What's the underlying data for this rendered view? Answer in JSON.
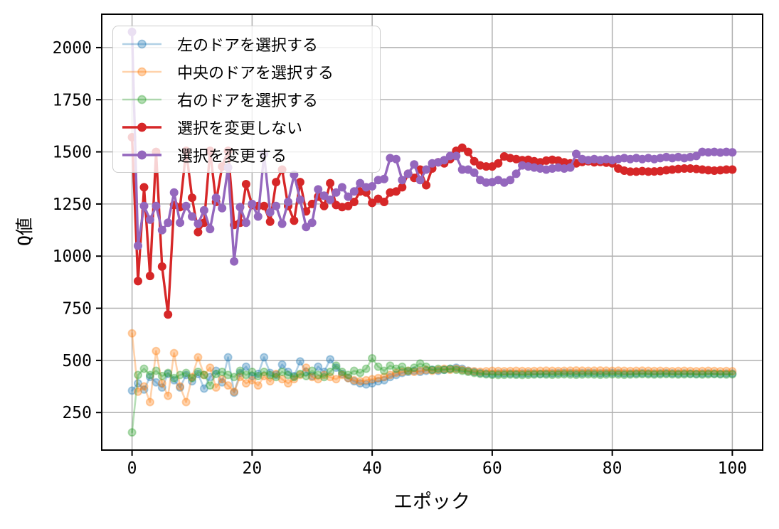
{
  "chart_data": {
    "type": "line",
    "title": "",
    "xlabel": "エポック",
    "ylabel": "Q値",
    "x_ticks": [
      0,
      20,
      40,
      60,
      80,
      100
    ],
    "y_ticks": [
      250,
      500,
      750,
      1000,
      1250,
      1500,
      1750,
      2000
    ],
    "xlim": [
      -5.05,
      105.05
    ],
    "ylim": [
      70,
      2160
    ],
    "grid": true,
    "grid_color": "#b0b0b0",
    "spine_color": "#000000",
    "background_color": "#ffffff",
    "legend_position": "upper-left",
    "legend_border_color": "#cccccc",
    "x_start": 0,
    "x_step": 1,
    "n_points": 101,
    "series": [
      {
        "name": "左のドアを選択する",
        "key": "left-door",
        "color": "#1f77b4",
        "alpha": 0.35,
        "linewidth": 2.6,
        "marker": "circle",
        "values": [
          355,
          390,
          360,
          420,
          395,
          370,
          435,
          405,
          370,
          430,
          400,
          435,
          365,
          420,
          450,
          395,
          515,
          345,
          440,
          470,
          425,
          435,
          515,
          440,
          430,
          480,
          445,
          425,
          495,
          445,
          425,
          470,
          445,
          505,
          465,
          435,
          415,
          400,
          390,
          385,
          390,
          400,
          405,
          420,
          430,
          440,
          445,
          450,
          445,
          450,
          455,
          450,
          455,
          460,
          465,
          460,
          450,
          445,
          440,
          437,
          436,
          437,
          438,
          437,
          436,
          437,
          438,
          437,
          436,
          437,
          438,
          439,
          440,
          439,
          438,
          439,
          440,
          439,
          438,
          439,
          440,
          439,
          438,
          437,
          438,
          439,
          438,
          437,
          438,
          439,
          438,
          437,
          438,
          437,
          436,
          437,
          438,
          437,
          436,
          437,
          437
        ]
      },
      {
        "name": "中央のドアを選択する",
        "key": "center-door",
        "color": "#ff7f0e",
        "alpha": 0.35,
        "linewidth": 2.6,
        "marker": "circle",
        "values": [
          630,
          350,
          375,
          300,
          545,
          390,
          330,
          535,
          375,
          300,
          420,
          515,
          430,
          465,
          370,
          410,
          380,
          350,
          420,
          390,
          405,
          380,
          425,
          400,
          435,
          410,
          390,
          410,
          430,
          465,
          420,
          410,
          430,
          420,
          410,
          430,
          415,
          405,
          400,
          405,
          410,
          415,
          420,
          430,
          440,
          445,
          450,
          445,
          450,
          455,
          450,
          455,
          460,
          455,
          460,
          455,
          450,
          448,
          446,
          448,
          450,
          449,
          448,
          449,
          450,
          449,
          448,
          449,
          450,
          451,
          450,
          449,
          450,
          451,
          452,
          451,
          450,
          451,
          452,
          451,
          450,
          451,
          450,
          449,
          450,
          451,
          450,
          449,
          450,
          449,
          448,
          449,
          450,
          449,
          448,
          449,
          450,
          449,
          448,
          449,
          448
        ]
      },
      {
        "name": "右のドアを選択する",
        "key": "right-door",
        "color": "#2ca02c",
        "alpha": 0.35,
        "linewidth": 2.6,
        "marker": "circle",
        "values": [
          155,
          430,
          460,
          430,
          450,
          425,
          440,
          415,
          430,
          440,
          415,
          445,
          430,
          380,
          435,
          445,
          430,
          420,
          450,
          430,
          445,
          425,
          445,
          430,
          420,
          445,
          430,
          420,
          435,
          425,
          450,
          430,
          420,
          445,
          475,
          445,
          430,
          450,
          440,
          460,
          510,
          470,
          450,
          475,
          460,
          470,
          450,
          465,
          485,
          470,
          455,
          460,
          455,
          460,
          455,
          450,
          445,
          440,
          436,
          433,
          431,
          430,
          431,
          432,
          431,
          430,
          431,
          432,
          433,
          432,
          431,
          432,
          433,
          432,
          431,
          432,
          433,
          432,
          431,
          432,
          433,
          432,
          431,
          432,
          433,
          434,
          433,
          432,
          433,
          434,
          433,
          432,
          433,
          434,
          433,
          432,
          433,
          434,
          433,
          432,
          433
        ]
      },
      {
        "name": "選択を変更しない",
        "key": "stay",
        "color": "#d62728",
        "alpha": 1,
        "linewidth": 3.4,
        "marker": "circle",
        "values": [
          1570,
          880,
          1330,
          905,
          1500,
          950,
          720,
          1245,
          1235,
          1505,
          1280,
          1115,
          1160,
          1505,
          1260,
          1430,
          1505,
          1150,
          1160,
          1345,
          1245,
          1240,
          1240,
          1165,
          1355,
          1415,
          1240,
          1170,
          1355,
          1215,
          1250,
          1285,
          1240,
          1350,
          1245,
          1235,
          1240,
          1260,
          1310,
          1305,
          1255,
          1275,
          1260,
          1305,
          1310,
          1330,
          1395,
          1375,
          1415,
          1340,
          1420,
          1450,
          1445,
          1465,
          1505,
          1520,
          1500,
          1455,
          1435,
          1430,
          1430,
          1445,
          1478,
          1470,
          1465,
          1460,
          1462,
          1455,
          1450,
          1458,
          1462,
          1458,
          1450,
          1445,
          1445,
          1452,
          1455,
          1450,
          1452,
          1448,
          1445,
          1420,
          1410,
          1405,
          1405,
          1408,
          1405,
          1406,
          1408,
          1412,
          1415,
          1418,
          1420,
          1420,
          1418,
          1415,
          1412,
          1410,
          1412,
          1415,
          1415
        ]
      },
      {
        "name": "選択を変更する",
        "key": "switch",
        "color": "#9467bd",
        "alpha": 1,
        "linewidth": 3.4,
        "marker": "circle",
        "values": [
          2075,
          1050,
          1240,
          1175,
          1240,
          1125,
          1160,
          1305,
          1160,
          1240,
          1190,
          1155,
          1220,
          1130,
          1280,
          1230,
          1425,
          975,
          1235,
          1160,
          1250,
          1190,
          1490,
          1210,
          1240,
          1155,
          1260,
          1390,
          1270,
          1140,
          1160,
          1320,
          1290,
          1270,
          1305,
          1330,
          1285,
          1310,
          1350,
          1330,
          1335,
          1365,
          1370,
          1470,
          1465,
          1365,
          1395,
          1440,
          1365,
          1415,
          1445,
          1450,
          1460,
          1480,
          1480,
          1415,
          1415,
          1400,
          1365,
          1353,
          1355,
          1365,
          1353,
          1365,
          1395,
          1435,
          1430,
          1425,
          1420,
          1415,
          1420,
          1425,
          1420,
          1425,
          1490,
          1465,
          1460,
          1465,
          1460,
          1465,
          1460,
          1465,
          1470,
          1465,
          1470,
          1465,
          1470,
          1465,
          1470,
          1475,
          1470,
          1475,
          1470,
          1475,
          1480,
          1500,
          1498,
          1500,
          1497,
          1500,
          1498
        ]
      }
    ]
  }
}
